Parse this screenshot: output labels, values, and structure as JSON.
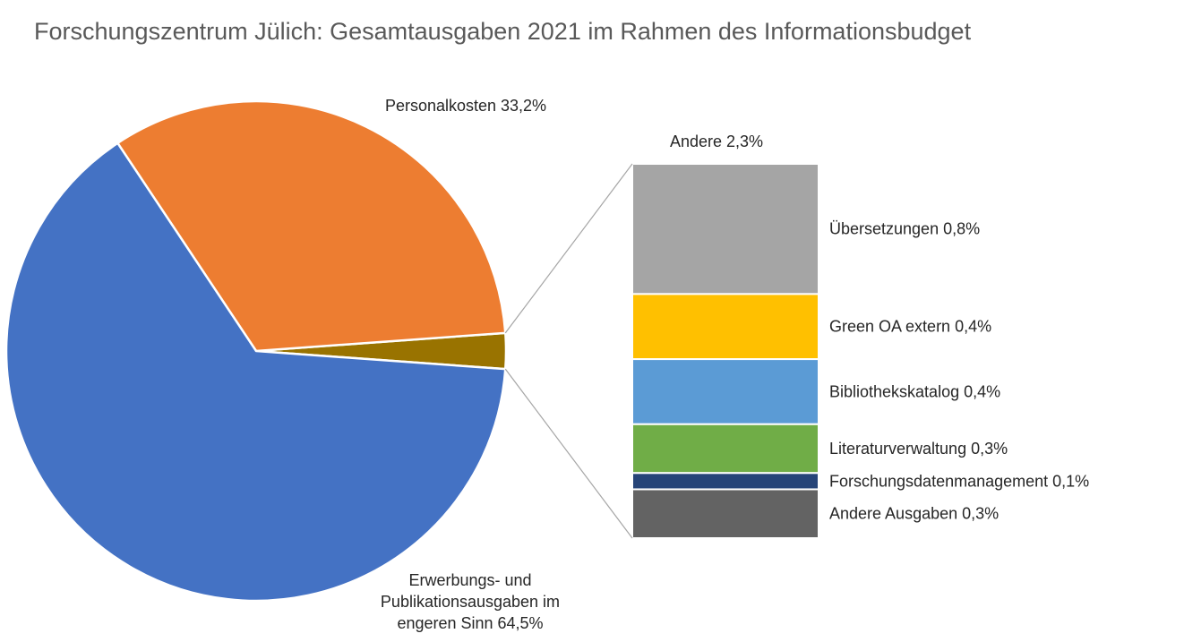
{
  "title": "Forschungszentrum Jülich: Gesamtausgaben 2021 im Rahmen des Informationsbudget",
  "chart_data": {
    "type": "pie",
    "subtype": "bar-of-pie",
    "title": "Forschungszentrum Jülich: Gesamtausgaben 2021 im Rahmen des Informationsbudget",
    "pie": {
      "slices": [
        {
          "id": "erwerbung",
          "label_lines": [
            "Erwerbungs- und",
            "Publikationsausgaben im",
            "engeren Sinn 64,5%"
          ],
          "value": 64.5,
          "color": "#4472C4"
        },
        {
          "id": "personal",
          "label_lines": [
            "Personalkosten 33,2%"
          ],
          "value": 33.2,
          "color": "#ED7D31"
        },
        {
          "id": "andere",
          "label_lines": [
            "Andere 2,3%"
          ],
          "value": 2.3,
          "color": "#997300"
        }
      ]
    },
    "bar": {
      "segments": [
        {
          "label": "Übersetzungen 0,8%",
          "value": 0.8,
          "color": "#A5A5A5"
        },
        {
          "label": "Green OA extern 0,4%",
          "value": 0.4,
          "color": "#FFC000"
        },
        {
          "label": "Bibliothekskatalog 0,4%",
          "value": 0.4,
          "color": "#5B9BD5"
        },
        {
          "label": "Literaturverwaltung  0,3%",
          "value": 0.3,
          "color": "#70AD47"
        },
        {
          "label": "Forschungsdatenmanagement 0,1%",
          "value": 0.1,
          "color": "#264478"
        },
        {
          "label": "Andere Ausgaben 0,3%",
          "value": 0.3,
          "color": "#636363"
        }
      ]
    },
    "connector_color": "#A6A6A6"
  }
}
